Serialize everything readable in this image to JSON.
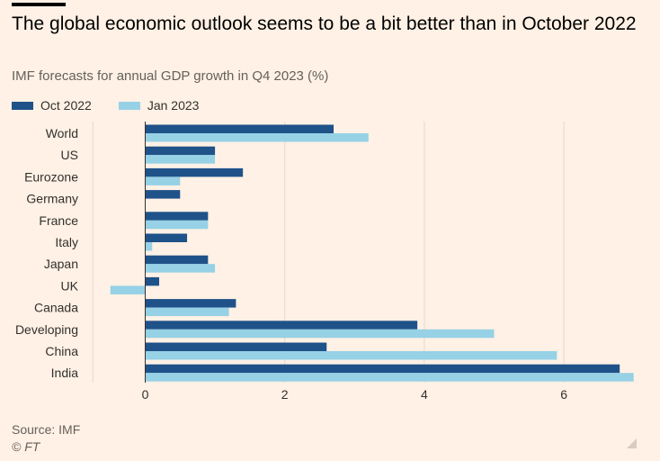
{
  "header": {
    "title": "The global economic outlook seems to be a bit better than in October 2022",
    "subtitle": "IMF forecasts for annual GDP growth in Q4 2023 (%)"
  },
  "footer": {
    "source": "Source: IMF",
    "credit": "© FT"
  },
  "colors": {
    "oct_2022": "#1F5289",
    "jan_2023": "#96D1E6",
    "grid": "#E6D9CE",
    "label": "#33302E"
  },
  "chart_data": {
    "type": "bar",
    "orientation": "horizontal",
    "categories": [
      "World",
      "US",
      "Eurozone",
      "Germany",
      "France",
      "Italy",
      "Japan",
      "UK",
      "Canada",
      "Developing",
      "China",
      "India"
    ],
    "series": [
      {
        "name": "Oct 2022",
        "values": [
          2.7,
          1.0,
          1.4,
          0.5,
          0.9,
          0.6,
          0.9,
          0.2,
          1.3,
          3.9,
          2.6,
          6.8
        ]
      },
      {
        "name": "Jan 2023",
        "values": [
          3.2,
          1.0,
          0.5,
          0.0,
          0.9,
          0.1,
          1.0,
          -0.5,
          1.2,
          5.0,
          5.9,
          7.0
        ]
      }
    ],
    "xlim": [
      -0.75,
      7.0
    ],
    "xticks": [
      0,
      2,
      4,
      6
    ],
    "legend": "top-left",
    "grid": true
  }
}
